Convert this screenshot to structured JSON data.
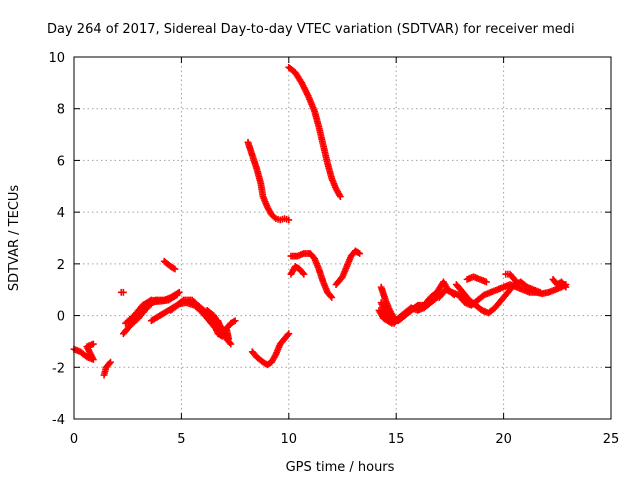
{
  "chart_data": {
    "type": "scatter",
    "title": "Day 264 of 2017, Sidereal Day-to-day VTEC variation (SDTVAR) for receiver medi",
    "xlabel": "GPS time / hours",
    "ylabel": "SDTVAR / TECUs",
    "xlim": [
      0,
      25
    ],
    "ylim": [
      -4,
      10
    ],
    "xticks": [
      0,
      5,
      10,
      15,
      20,
      25
    ],
    "yticks": [
      -4,
      -2,
      0,
      2,
      4,
      6,
      8,
      10
    ],
    "grid": true,
    "marker": "plus",
    "color": "#ff0000",
    "segments": [
      [
        [
          0.0,
          -1.3
        ],
        [
          0.3,
          -1.4
        ],
        [
          0.6,
          -1.6
        ],
        [
          0.9,
          -1.7
        ],
        [
          0.6,
          -1.2
        ],
        [
          0.9,
          -1.1
        ]
      ],
      [
        [
          1.4,
          -2.3
        ],
        [
          1.5,
          -2.0
        ],
        [
          1.7,
          -1.8
        ]
      ],
      [
        [
          2.2,
          0.9
        ],
        [
          2.3,
          0.9
        ]
      ],
      [
        [
          2.3,
          -0.7
        ],
        [
          2.6,
          -0.4
        ],
        [
          3.0,
          -0.1
        ],
        [
          3.4,
          0.3
        ],
        [
          3.8,
          0.6
        ],
        [
          4.2,
          0.6
        ],
        [
          4.5,
          0.7
        ],
        [
          4.9,
          0.9
        ]
      ],
      [
        [
          2.4,
          -0.3
        ],
        [
          2.8,
          0.0
        ],
        [
          3.2,
          0.4
        ],
        [
          3.6,
          0.6
        ],
        [
          4.0,
          0.55
        ],
        [
          4.4,
          0.6
        ],
        [
          4.8,
          0.8
        ]
      ],
      [
        [
          2.7,
          -0.2
        ],
        [
          3.1,
          0.1
        ],
        [
          3.5,
          0.5
        ],
        [
          3.9,
          0.55
        ]
      ],
      [
        [
          4.2,
          2.1
        ],
        [
          4.5,
          1.9
        ],
        [
          4.7,
          1.8
        ]
      ],
      [
        [
          3.6,
          -0.2
        ],
        [
          4.0,
          0.0
        ],
        [
          4.4,
          0.2
        ],
        [
          4.8,
          0.4
        ],
        [
          5.1,
          0.6
        ],
        [
          5.5,
          0.6
        ],
        [
          5.9,
          0.3
        ],
        [
          6.2,
          0.1
        ],
        [
          6.5,
          -0.3
        ],
        [
          6.7,
          -0.7
        ],
        [
          6.9,
          -0.8
        ]
      ],
      [
        [
          4.5,
          0.2
        ],
        [
          4.9,
          0.45
        ],
        [
          5.2,
          0.5
        ],
        [
          5.6,
          0.4
        ],
        [
          6.0,
          0.1
        ],
        [
          6.3,
          -0.2
        ],
        [
          6.6,
          -0.5
        ]
      ],
      [
        [
          6.2,
          0.2
        ],
        [
          6.5,
          0.0
        ],
        [
          6.8,
          -0.4
        ],
        [
          7.0,
          -0.6
        ],
        [
          7.2,
          -0.9
        ],
        [
          7.1,
          -0.5
        ],
        [
          7.3,
          -0.3
        ],
        [
          7.5,
          -0.2
        ]
      ],
      [
        [
          6.7,
          -0.2
        ],
        [
          6.9,
          -0.6
        ],
        [
          7.1,
          -0.9
        ],
        [
          7.3,
          -1.1
        ]
      ],
      [
        [
          8.1,
          6.7
        ],
        [
          8.3,
          6.2
        ],
        [
          8.5,
          5.7
        ],
        [
          8.7,
          5.1
        ],
        [
          8.8,
          4.6
        ],
        [
          9.0,
          4.2
        ],
        [
          9.2,
          3.9
        ],
        [
          9.4,
          3.75
        ],
        [
          9.6,
          3.7
        ],
        [
          9.8,
          3.75
        ],
        [
          10.0,
          3.7
        ]
      ],
      [
        [
          8.3,
          -1.4
        ],
        [
          8.5,
          -1.6
        ],
        [
          8.8,
          -1.8
        ],
        [
          9.0,
          -1.9
        ],
        [
          9.2,
          -1.8
        ],
        [
          9.4,
          -1.5
        ],
        [
          9.6,
          -1.1
        ],
        [
          9.8,
          -0.9
        ],
        [
          10.0,
          -0.7
        ]
      ],
      [
        [
          10.0,
          9.6
        ],
        [
          10.3,
          9.4
        ],
        [
          10.6,
          9.0
        ],
        [
          10.9,
          8.5
        ],
        [
          11.2,
          7.9
        ],
        [
          11.4,
          7.3
        ],
        [
          11.6,
          6.6
        ],
        [
          11.8,
          5.9
        ],
        [
          12.0,
          5.3
        ],
        [
          12.2,
          4.9
        ],
        [
          12.4,
          4.6
        ]
      ],
      [
        [
          10.1,
          2.3
        ],
        [
          10.4,
          2.3
        ],
        [
          10.7,
          2.4
        ],
        [
          11.0,
          2.4
        ],
        [
          11.2,
          2.2
        ],
        [
          11.4,
          1.8
        ],
        [
          11.6,
          1.3
        ],
        [
          11.8,
          0.9
        ],
        [
          12.0,
          0.7
        ]
      ],
      [
        [
          10.1,
          1.6
        ],
        [
          10.3,
          1.9
        ],
        [
          10.5,
          1.8
        ],
        [
          10.7,
          1.6
        ]
      ],
      [
        [
          12.2,
          1.2
        ],
        [
          12.5,
          1.5
        ],
        [
          12.7,
          1.9
        ],
        [
          12.9,
          2.3
        ],
        [
          13.1,
          2.5
        ],
        [
          13.3,
          2.4
        ]
      ],
      [
        [
          14.3,
          1.1
        ],
        [
          14.5,
          0.6
        ],
        [
          14.7,
          0.2
        ],
        [
          14.9,
          -0.1
        ],
        [
          15.1,
          -0.2
        ],
        [
          15.4,
          0.0
        ],
        [
          15.7,
          0.2
        ],
        [
          16.0,
          0.4
        ],
        [
          16.3,
          0.4
        ],
        [
          16.6,
          0.7
        ],
        [
          16.9,
          0.9
        ],
        [
          17.2,
          1.3
        ],
        [
          17.4,
          1.0
        ],
        [
          17.7,
          0.8
        ]
      ],
      [
        [
          14.3,
          0.5
        ],
        [
          14.5,
          0.1
        ],
        [
          14.7,
          -0.1
        ],
        [
          14.9,
          -0.3
        ],
        [
          15.1,
          -0.1
        ],
        [
          15.4,
          0.1
        ],
        [
          15.7,
          0.3
        ],
        [
          16.0,
          0.2
        ],
        [
          16.3,
          0.3
        ],
        [
          16.6,
          0.5
        ],
        [
          16.9,
          0.7
        ]
      ],
      [
        [
          14.2,
          0.2
        ],
        [
          14.4,
          -0.1
        ],
        [
          14.6,
          -0.2
        ],
        [
          14.8,
          -0.3
        ]
      ],
      [
        [
          17.0,
          0.7
        ],
        [
          17.3,
          1.0
        ],
        [
          17.6,
          0.9
        ],
        [
          17.9,
          0.8
        ],
        [
          18.2,
          0.5
        ],
        [
          18.5,
          0.4
        ],
        [
          18.8,
          0.6
        ],
        [
          19.1,
          0.8
        ],
        [
          19.4,
          0.9
        ],
        [
          19.7,
          1.0
        ],
        [
          20.0,
          1.1
        ],
        [
          20.3,
          1.2
        ],
        [
          20.6,
          1.1
        ],
        [
          20.9,
          1.0
        ],
        [
          21.2,
          0.9
        ],
        [
          21.5,
          0.9
        ],
        [
          21.8,
          0.85
        ],
        [
          22.1,
          0.9
        ],
        [
          22.4,
          1.0
        ],
        [
          22.7,
          1.1
        ],
        [
          22.9,
          1.2
        ]
      ],
      [
        [
          17.8,
          1.2
        ],
        [
          18.1,
          0.9
        ],
        [
          18.4,
          0.6
        ],
        [
          18.7,
          0.4
        ],
        [
          19.0,
          0.2
        ],
        [
          19.3,
          0.1
        ],
        [
          19.6,
          0.3
        ],
        [
          19.9,
          0.6
        ],
        [
          20.2,
          0.9
        ],
        [
          20.5,
          1.2
        ],
        [
          20.8,
          1.3
        ],
        [
          21.1,
          1.1
        ],
        [
          21.4,
          1.0
        ],
        [
          21.7,
          0.9
        ]
      ],
      [
        [
          18.3,
          1.4
        ],
        [
          18.6,
          1.5
        ],
        [
          18.9,
          1.4
        ],
        [
          19.2,
          1.3
        ]
      ],
      [
        [
          20.1,
          1.6
        ],
        [
          20.3,
          1.6
        ],
        [
          20.6,
          1.3
        ]
      ],
      [
        [
          22.3,
          1.4
        ],
        [
          22.5,
          1.2
        ],
        [
          22.7,
          1.3
        ],
        [
          22.9,
          1.1
        ]
      ]
    ]
  }
}
